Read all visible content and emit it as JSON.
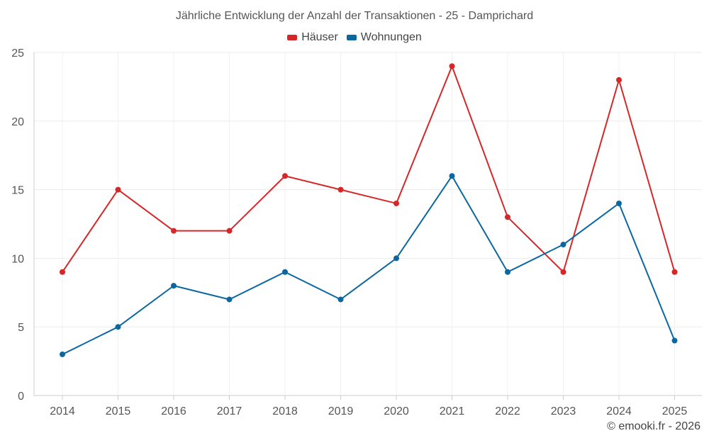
{
  "chart_data": {
    "type": "line",
    "title": "Jährliche Entwicklung der Anzahl der Transaktionen - 25 - Damprichard",
    "categories": [
      "2014",
      "2015",
      "2016",
      "2017",
      "2018",
      "2019",
      "2020",
      "2021",
      "2022",
      "2023",
      "2024",
      "2025"
    ],
    "series": [
      {
        "name": "Häuser",
        "color": "#d62728",
        "values": [
          9,
          15,
          12,
          12,
          16,
          15,
          14,
          24,
          13,
          9,
          23,
          9
        ]
      },
      {
        "name": "Wohnungen",
        "color": "#0b67a0",
        "values": [
          3,
          5,
          8,
          7,
          9,
          7,
          10,
          16,
          9,
          11,
          14,
          4
        ]
      }
    ],
    "yticks": [
      0,
      5,
      10,
      15,
      20,
      25
    ],
    "ylim": [
      0,
      25
    ],
    "xlabel": "",
    "ylabel": "",
    "legend_position": "top-center",
    "grid": true
  },
  "footer": {
    "credit": "© emooki.fr - 2026"
  }
}
